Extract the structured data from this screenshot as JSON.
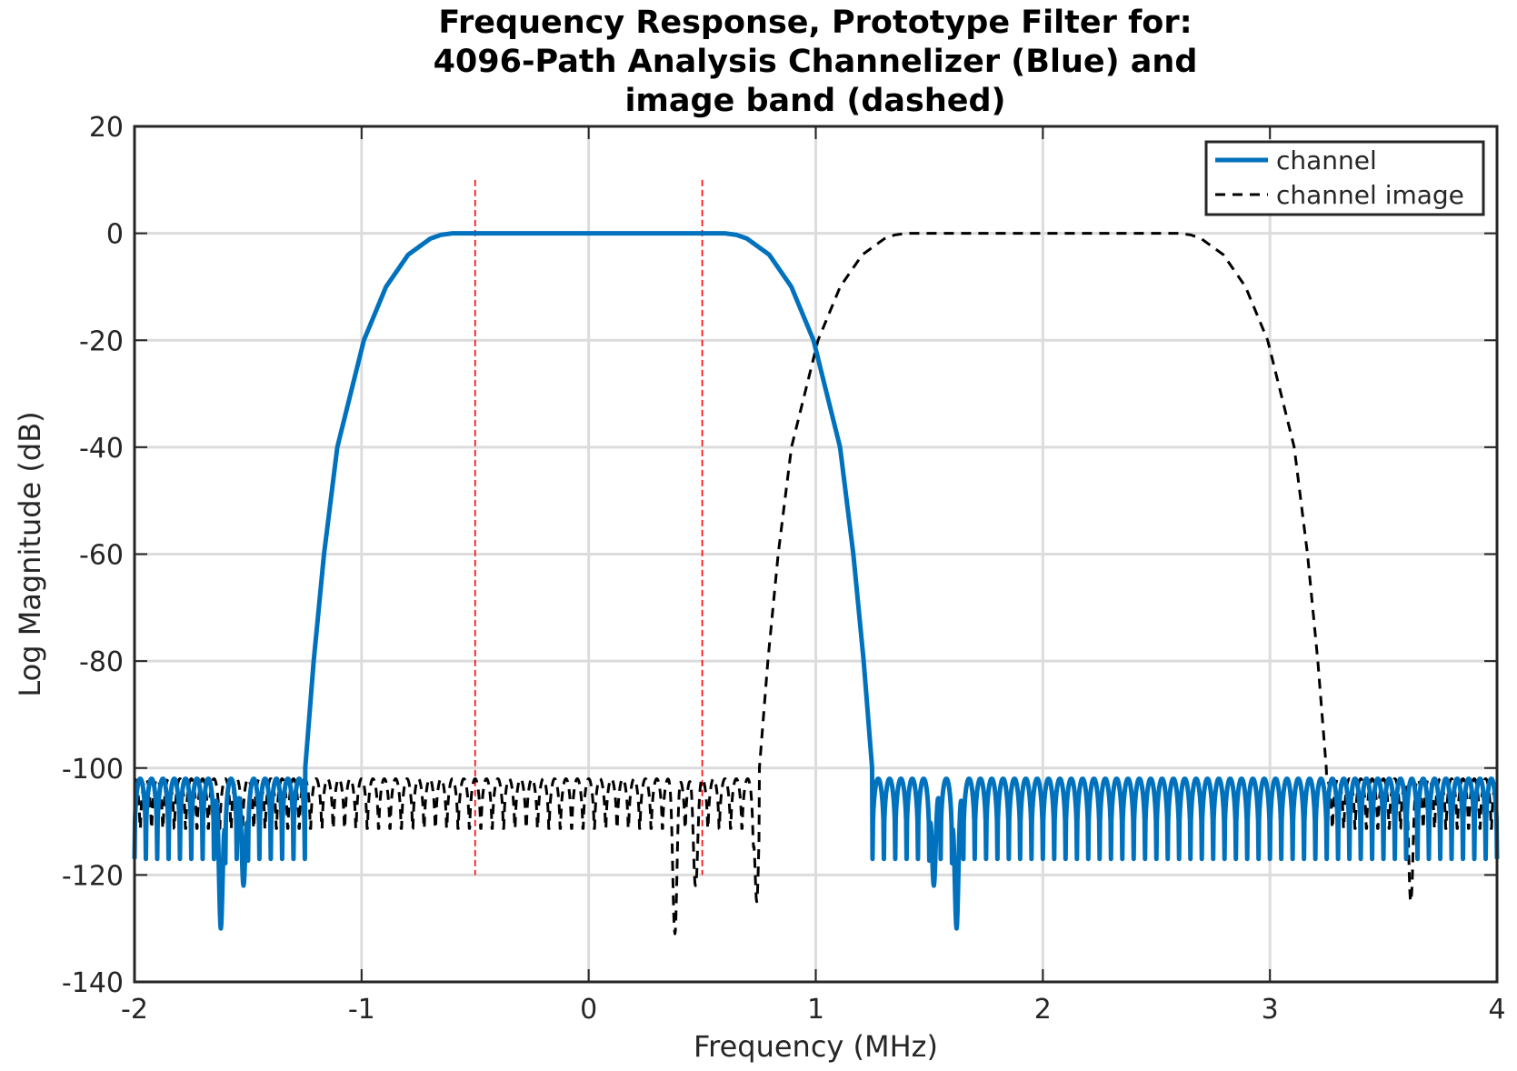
{
  "chart_data": {
    "type": "line",
    "title": [
      "Frequency Response, Prototype Filter for:",
      "4096-Path Analysis Channelizer (Blue) and",
      "image band (dashed)"
    ],
    "xlabel": "Frequency (MHz)",
    "ylabel": "Log Magnitude (dB)",
    "xlim": [
      -2,
      4
    ],
    "ylim": [
      -140,
      20
    ],
    "xticks": [
      -2,
      -1,
      0,
      1,
      2,
      3,
      4
    ],
    "yticks": [
      20,
      0,
      -20,
      -40,
      -60,
      -80,
      -100,
      -120,
      -140
    ],
    "xtick_labels": [
      "-2",
      "-1",
      "0",
      "1",
      "2",
      "3",
      "4"
    ],
    "ytick_labels": [
      "20",
      "0",
      "-20",
      "-40",
      "-60",
      "-80",
      "-100",
      "-120",
      "-140"
    ],
    "grid": true,
    "legend_position": "top-right",
    "series": [
      {
        "name": "channel",
        "color": "#0072BD",
        "style": "solid",
        "passband_edge_mhz": 0.6,
        "transition_end_mhz": 1.25,
        "passband_level_db": 0,
        "stopband_level_db": [
          -102,
          -117
        ],
        "deep_nulls": [
          {
            "x": -1.62,
            "y": -130
          },
          {
            "x": -1.52,
            "y": -122
          },
          {
            "x": 1.52,
            "y": -122
          },
          {
            "x": 1.62,
            "y": -130
          }
        ],
        "points": [
          [
            -1.25,
            -100
          ],
          [
            -1.22,
            -80
          ],
          [
            -1.18,
            -60
          ],
          [
            -1.12,
            -40
          ],
          [
            -1.0,
            -20
          ],
          [
            -0.9,
            -10
          ],
          [
            -0.8,
            -4
          ],
          [
            -0.7,
            -1
          ],
          [
            -0.6,
            0
          ],
          [
            0.0,
            0
          ],
          [
            0.6,
            0
          ],
          [
            0.7,
            -1
          ],
          [
            0.8,
            -4
          ],
          [
            0.9,
            -10
          ],
          [
            1.0,
            -17
          ],
          [
            1.12,
            -40
          ],
          [
            1.18,
            -60
          ],
          [
            1.22,
            -80
          ],
          [
            1.25,
            -100
          ]
        ]
      },
      {
        "name": "channel image",
        "color": "#000000",
        "style": "dashed",
        "passband_edge_mhz": [
          1.4,
          2.6
        ],
        "transition_end_mhz": [
          0.75,
          3.25
        ],
        "passband_level_db": 0,
        "stopband_level_db": [
          -102,
          -118
        ],
        "deep_nulls": [
          {
            "x": 0.38,
            "y": -131
          },
          {
            "x": 0.47,
            "y": -122
          },
          {
            "x": 0.74,
            "y": -125
          },
          {
            "x": 3.62,
            "y": -125
          }
        ],
        "points": [
          [
            0.75,
            -100
          ],
          [
            0.78,
            -80
          ],
          [
            0.82,
            -60
          ],
          [
            0.88,
            -40
          ],
          [
            1.0,
            -20
          ],
          [
            1.1,
            -10
          ],
          [
            1.2,
            -4
          ],
          [
            1.3,
            -1
          ],
          [
            1.4,
            0
          ],
          [
            2.0,
            0
          ],
          [
            2.6,
            0
          ],
          [
            2.7,
            -1
          ],
          [
            2.8,
            -4
          ],
          [
            2.9,
            -10
          ],
          [
            3.0,
            -20
          ],
          [
            3.12,
            -40
          ],
          [
            3.18,
            -60
          ],
          [
            3.22,
            -80
          ],
          [
            3.25,
            -100
          ]
        ]
      }
    ],
    "markers": [
      {
        "x": -0.5,
        "color": "#FF0000",
        "style": "dashed",
        "y_range": [
          -120,
          10
        ]
      },
      {
        "x": 0.5,
        "color": "#FF0000",
        "style": "dashed",
        "y_range": [
          -120,
          10
        ]
      }
    ]
  }
}
